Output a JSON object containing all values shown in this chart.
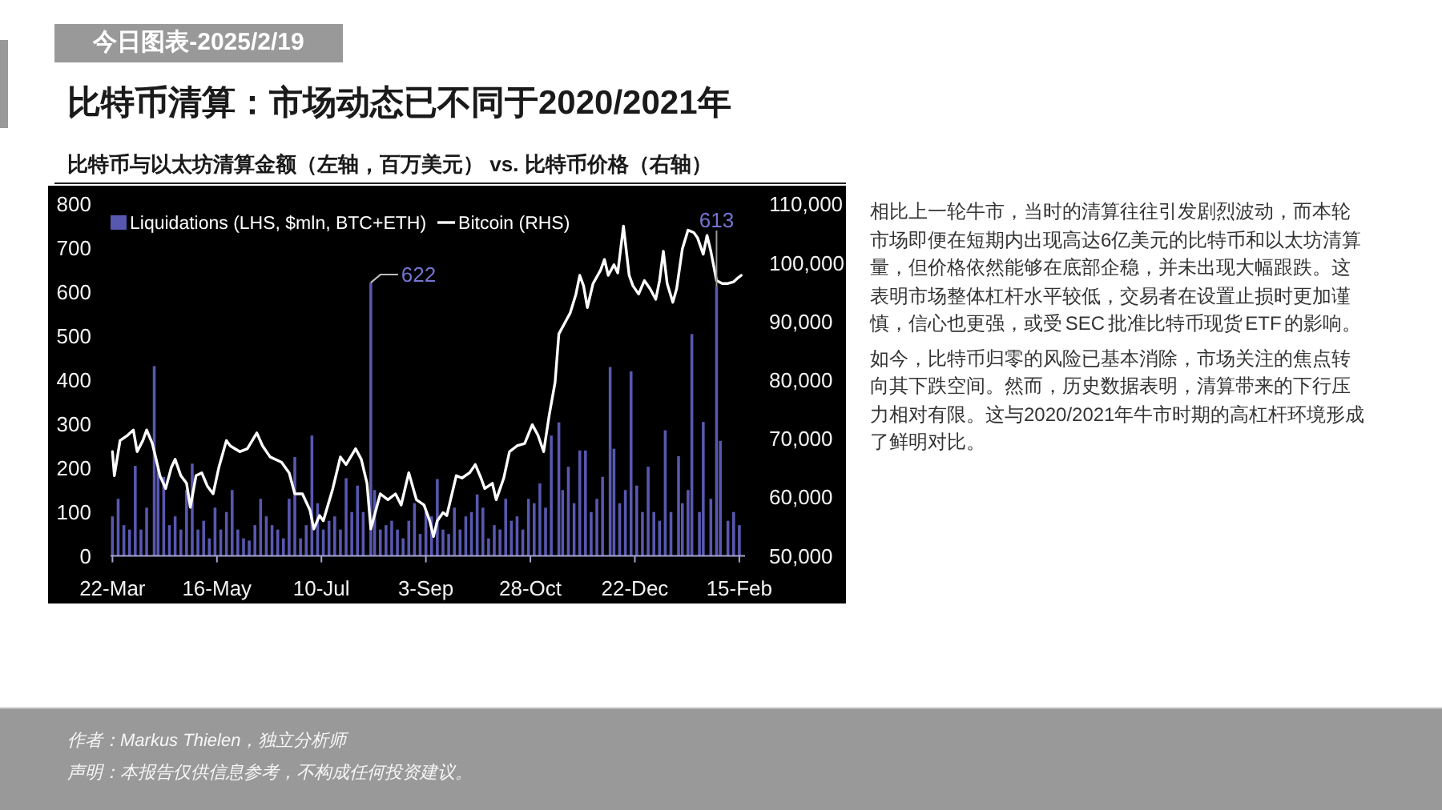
{
  "chart_data": {
    "type": "bar",
    "title": "比特币清算：市场动态已不同于2020/2021年",
    "subtitle": "比特币与以太坊清算金额（左轴，百万美元） vs. 比特币价格（右轴）",
    "annotations": [
      "今日图表-2025/2/19",
      "相比上一轮牛市，当时的清算往往引发剧烈波动，而本轮市场即便在短期内出现高达6亿美元的比特币和以太坊清算量，但价格依然能够在底部企稳，并未出现大幅跟跌。这表明市场整体杠杆水平较低，交易者在设置止损时更加谨慎，信心也更强，或受 SEC 批准比特币现货 ETF 的影响。",
      "如今，比特币归零的风险已基本消除，市场关注的焦点转向其下跌空间。然而，历史数据表明，清算带来的下行压力相对有限。这与2020/2021年牛市时期的高杠杆环境形成了鲜明对比。",
      "作者：Markus Thielen，独立分析师",
      "声明：本报告仅供信息参考，不构成任何投资建议。"
    ],
    "xlim": [
      "2024-03-21",
      "2025-02-18"
    ],
    "xticks": [
      {
        "value": "2024-03-22",
        "label": "22-Mar"
      },
      {
        "value": "2024-05-16",
        "label": "16-May"
      },
      {
        "value": "2024-07-10",
        "label": "10-Jul"
      },
      {
        "value": "2024-09-03",
        "label": "3-Sep"
      },
      {
        "value": "2024-10-28",
        "label": "28-Oct"
      },
      {
        "value": "2024-12-22",
        "label": "22-Dec"
      },
      {
        "value": "2025-02-15",
        "label": "15-Feb"
      }
    ],
    "ylim": [
      0,
      800
    ],
    "yticks": [
      0,
      100,
      200,
      300,
      400,
      500,
      600,
      700,
      800
    ],
    "y2lim": [
      50000,
      110000
    ],
    "y2ticks": [
      {
        "value": 50000,
        "label": "50,000"
      },
      {
        "value": 60000,
        "label": "60,000"
      },
      {
        "value": 70000,
        "label": "70,000"
      },
      {
        "value": 80000,
        "label": "80,000"
      },
      {
        "value": 90000,
        "label": "90,000"
      },
      {
        "value": 100000,
        "label": "100,000"
      },
      {
        "value": 110000,
        "label": "110,000"
      }
    ],
    "legend": "top left",
    "series": [
      {
        "name": "Liquidations (LHS, $mln, BTC+ETH)",
        "color": "#5858b0",
        "x": [
          "2024-03-22",
          "2024-03-25",
          "2024-03-28",
          "2024-03-31",
          "2024-04-03",
          "2024-04-06",
          "2024-04-09",
          "2024-04-13",
          "2024-04-15",
          "2024-04-18",
          "2024-04-21",
          "2024-04-24",
          "2024-04-27",
          "2024-04-30",
          "2024-05-03",
          "2024-05-06",
          "2024-05-09",
          "2024-05-12",
          "2024-05-15",
          "2024-05-18",
          "2024-05-21",
          "2024-05-24",
          "2024-05-27",
          "2024-05-30",
          "2024-06-02",
          "2024-06-05",
          "2024-06-08",
          "2024-06-11",
          "2024-06-14",
          "2024-06-17",
          "2024-06-20",
          "2024-06-23",
          "2024-06-26",
          "2024-06-29",
          "2024-07-02",
          "2024-07-05",
          "2024-07-08",
          "2024-07-11",
          "2024-07-14",
          "2024-07-17",
          "2024-07-20",
          "2024-07-23",
          "2024-07-26",
          "2024-07-29",
          "2024-08-01",
          "2024-08-05",
          "2024-08-07",
          "2024-08-10",
          "2024-08-13",
          "2024-08-16",
          "2024-08-19",
          "2024-08-22",
          "2024-08-25",
          "2024-08-28",
          "2024-08-31",
          "2024-09-03",
          "2024-09-06",
          "2024-09-09",
          "2024-09-12",
          "2024-09-15",
          "2024-09-18",
          "2024-09-21",
          "2024-09-24",
          "2024-09-27",
          "2024-09-30",
          "2024-10-03",
          "2024-10-06",
          "2024-10-09",
          "2024-10-12",
          "2024-10-15",
          "2024-10-18",
          "2024-10-21",
          "2024-10-24",
          "2024-10-27",
          "2024-10-30",
          "2024-11-02",
          "2024-11-05",
          "2024-11-08",
          "2024-11-12",
          "2024-11-14",
          "2024-11-17",
          "2024-11-20",
          "2024-11-23",
          "2024-11-26",
          "2024-11-29",
          "2024-12-02",
          "2024-12-05",
          "2024-12-09",
          "2024-12-11",
          "2024-12-14",
          "2024-12-17",
          "2024-12-20",
          "2024-12-23",
          "2024-12-26",
          "2024-12-29",
          "2025-01-01",
          "2025-01-04",
          "2025-01-07",
          "2025-01-10",
          "2025-01-14",
          "2025-01-16",
          "2025-01-19",
          "2025-01-21",
          "2025-01-25",
          "2025-01-27",
          "2025-01-31",
          "2025-02-03",
          "2025-02-05",
          "2025-02-09",
          "2025-02-12",
          "2025-02-15"
        ],
        "values": [
          90,
          130,
          70,
          60,
          205,
          60,
          110,
          432,
          200,
          180,
          70,
          90,
          60,
          150,
          210,
          60,
          80,
          40,
          110,
          60,
          100,
          150,
          60,
          40,
          35,
          70,
          130,
          90,
          70,
          60,
          40,
          130,
          225,
          40,
          70,
          274,
          120,
          60,
          80,
          90,
          60,
          177,
          100,
          160,
          100,
          622,
          150,
          60,
          70,
          80,
          60,
          40,
          80,
          120,
          50,
          100,
          90,
          175,
          60,
          50,
          110,
          60,
          90,
          100,
          140,
          110,
          40,
          70,
          60,
          130,
          80,
          90,
          60,
          130,
          120,
          165,
          110,
          274,
          304,
          150,
          203,
          120,
          240,
          240,
          100,
          130,
          180,
          430,
          244,
          120,
          150,
          420,
          160,
          100,
          203,
          100,
          80,
          286,
          100,
          227,
          120,
          150,
          505,
          100,
          305,
          130,
          613,
          262,
          80,
          100,
          70
        ],
        "value_labels": [
          null,
          null,
          null,
          null,
          null,
          null,
          null,
          null,
          null,
          null,
          null,
          null,
          null,
          null,
          null,
          null,
          null,
          null,
          null,
          null,
          null,
          null,
          null,
          null,
          null,
          null,
          null,
          null,
          null,
          null,
          null,
          null,
          null,
          null,
          null,
          null,
          null,
          null,
          null,
          null,
          null,
          null,
          null,
          null,
          null,
          "622",
          null,
          null,
          null,
          null,
          null,
          null,
          null,
          null,
          null,
          null,
          null,
          null,
          null,
          null,
          null,
          null,
          null,
          null,
          null,
          null,
          null,
          null,
          null,
          null,
          null,
          null,
          null,
          null,
          null,
          null,
          null,
          null,
          null,
          null,
          null,
          null,
          null,
          null,
          null,
          null,
          null,
          null,
          null,
          null,
          null,
          null,
          null,
          null,
          null,
          null,
          null,
          null,
          null,
          null,
          null,
          null,
          null,
          null,
          null,
          null,
          "613",
          null,
          null,
          null,
          null
        ]
      },
      {
        "name": "Bitcoin (RHS)",
        "type": "line",
        "axis": "y2",
        "color": "#ffffff",
        "x": [
          "2024-03-22",
          "2024-03-23",
          "2024-03-26",
          "2024-03-30",
          "2024-04-02",
          "2024-04-04",
          "2024-04-07",
          "2024-04-09",
          "2024-04-12",
          "2024-04-14",
          "2024-04-16",
          "2024-04-19",
          "2024-04-22",
          "2024-04-24",
          "2024-04-27",
          "2024-04-30",
          "2024-05-02",
          "2024-05-05",
          "2024-05-08",
          "2024-05-11",
          "2024-05-14",
          "2024-05-17",
          "2024-05-21",
          "2024-05-23",
          "2024-05-28",
          "2024-06-01",
          "2024-06-06",
          "2024-06-09",
          "2024-06-13",
          "2024-06-19",
          "2024-06-23",
          "2024-06-26",
          "2024-06-30",
          "2024-07-04",
          "2024-07-06",
          "2024-07-09",
          "2024-07-11",
          "2024-07-16",
          "2024-07-20",
          "2024-07-23",
          "2024-07-28",
          "2024-07-31",
          "2024-08-03",
          "2024-08-05",
          "2024-08-10",
          "2024-08-14",
          "2024-08-18",
          "2024-08-21",
          "2024-08-25",
          "2024-08-29",
          "2024-09-02",
          "2024-09-05",
          "2024-09-07",
          "2024-09-09",
          "2024-09-12",
          "2024-09-14",
          "2024-09-19",
          "2024-09-22",
          "2024-09-26",
          "2024-09-29",
          "2024-10-02",
          "2024-10-04",
          "2024-10-08",
          "2024-10-10",
          "2024-10-14",
          "2024-10-17",
          "2024-10-21",
          "2024-10-25",
          "2024-10-29",
          "2024-11-01",
          "2024-11-04",
          "2024-11-07",
          "2024-11-10",
          "2024-11-12",
          "2024-11-15",
          "2024-11-18",
          "2024-11-21",
          "2024-11-23",
          "2024-11-25",
          "2024-11-27",
          "2024-11-30",
          "2024-12-04",
          "2024-12-06",
          "2024-12-08",
          "2024-12-11",
          "2024-12-13",
          "2024-12-16",
          "2024-12-19",
          "2024-12-21",
          "2024-12-24",
          "2024-12-27",
          "2024-12-30",
          "2025-01-02",
          "2025-01-04",
          "2025-01-06",
          "2025-01-08",
          "2025-01-11",
          "2025-01-13",
          "2025-01-16",
          "2025-01-19",
          "2025-01-22",
          "2025-01-24",
          "2025-01-27",
          "2025-01-29",
          "2025-01-31",
          "2025-02-03",
          "2025-02-06",
          "2025-02-09",
          "2025-02-12",
          "2025-02-14",
          "2025-02-16"
        ],
        "values": [
          67800,
          63700,
          69700,
          70600,
          71500,
          67800,
          69700,
          71500,
          69200,
          66500,
          63700,
          61500,
          65100,
          66500,
          63700,
          62400,
          58300,
          63700,
          64200,
          61900,
          60600,
          65100,
          69700,
          68800,
          67800,
          68300,
          71000,
          68800,
          66900,
          66000,
          64200,
          60600,
          60600,
          57800,
          54600,
          56900,
          56000,
          61500,
          66900,
          65600,
          68300,
          66500,
          62400,
          54600,
          60600,
          59600,
          60600,
          58700,
          64200,
          59600,
          58700,
          56000,
          53300,
          56000,
          57400,
          56900,
          63700,
          63300,
          64200,
          65600,
          63300,
          61500,
          62400,
          59600,
          63300,
          67800,
          68800,
          69200,
          72400,
          70600,
          67800,
          74200,
          79600,
          87900,
          89700,
          91500,
          94700,
          97900,
          96100,
          92400,
          96500,
          98800,
          100600,
          97900,
          99700,
          98300,
          106300,
          97900,
          96100,
          94700,
          97000,
          95600,
          93800,
          97000,
          102000,
          96500,
          93300,
          95600,
          102400,
          105600,
          105200,
          104300,
          101500,
          104700,
          102000,
          97000,
          96500,
          96500,
          96800,
          97400,
          97900
        ]
      }
    ]
  }
}
